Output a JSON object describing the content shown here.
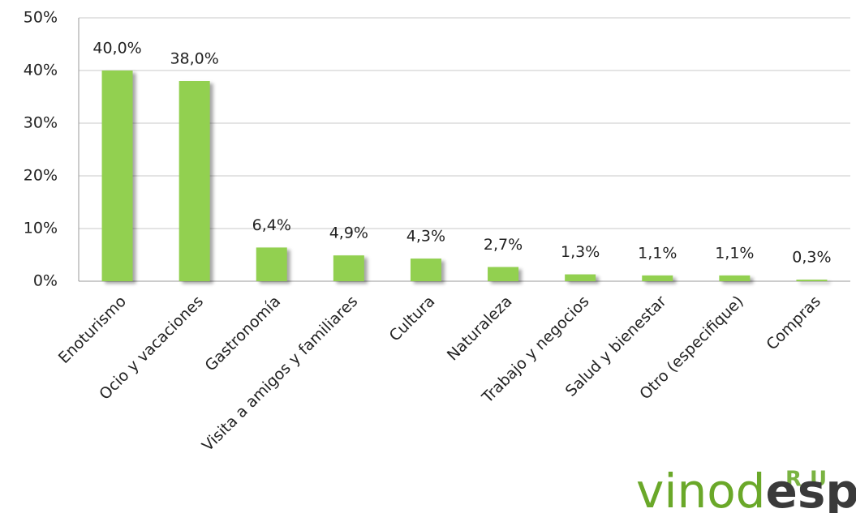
{
  "chart_data": {
    "type": "bar",
    "categories": [
      "Enoturismo",
      "Ocio y vacaciones",
      "Gastronomía",
      "Visita a amigos y familiares",
      "Cultura",
      "Naturaleza",
      "Trabajo y negocios",
      "Salud y bienestar",
      "Otro (especifique)",
      "Compras"
    ],
    "values": [
      40.0,
      38.0,
      6.4,
      4.9,
      4.3,
      2.7,
      1.3,
      1.1,
      1.1,
      0.3
    ],
    "value_labels": [
      "40,0%",
      "38,0%",
      "6,4%",
      "4,9%",
      "4,3%",
      "2,7%",
      "1,3%",
      "1,1%",
      "1,1%",
      "0,3%"
    ],
    "color": "#92d050",
    "ylim": [
      0,
      50
    ],
    "yticks": [
      {
        "value": 0,
        "label": "0%"
      },
      {
        "value": 10,
        "label": "10%"
      },
      {
        "value": 20,
        "label": "20%"
      },
      {
        "value": 30,
        "label": "30%"
      },
      {
        "value": 40,
        "label": "40%"
      },
      {
        "value": 50,
        "label": "50%"
      }
    ],
    "grid": true
  },
  "logo": {
    "badge": "RU",
    "name_green": "vinod",
    "name_dark": "esp"
  }
}
